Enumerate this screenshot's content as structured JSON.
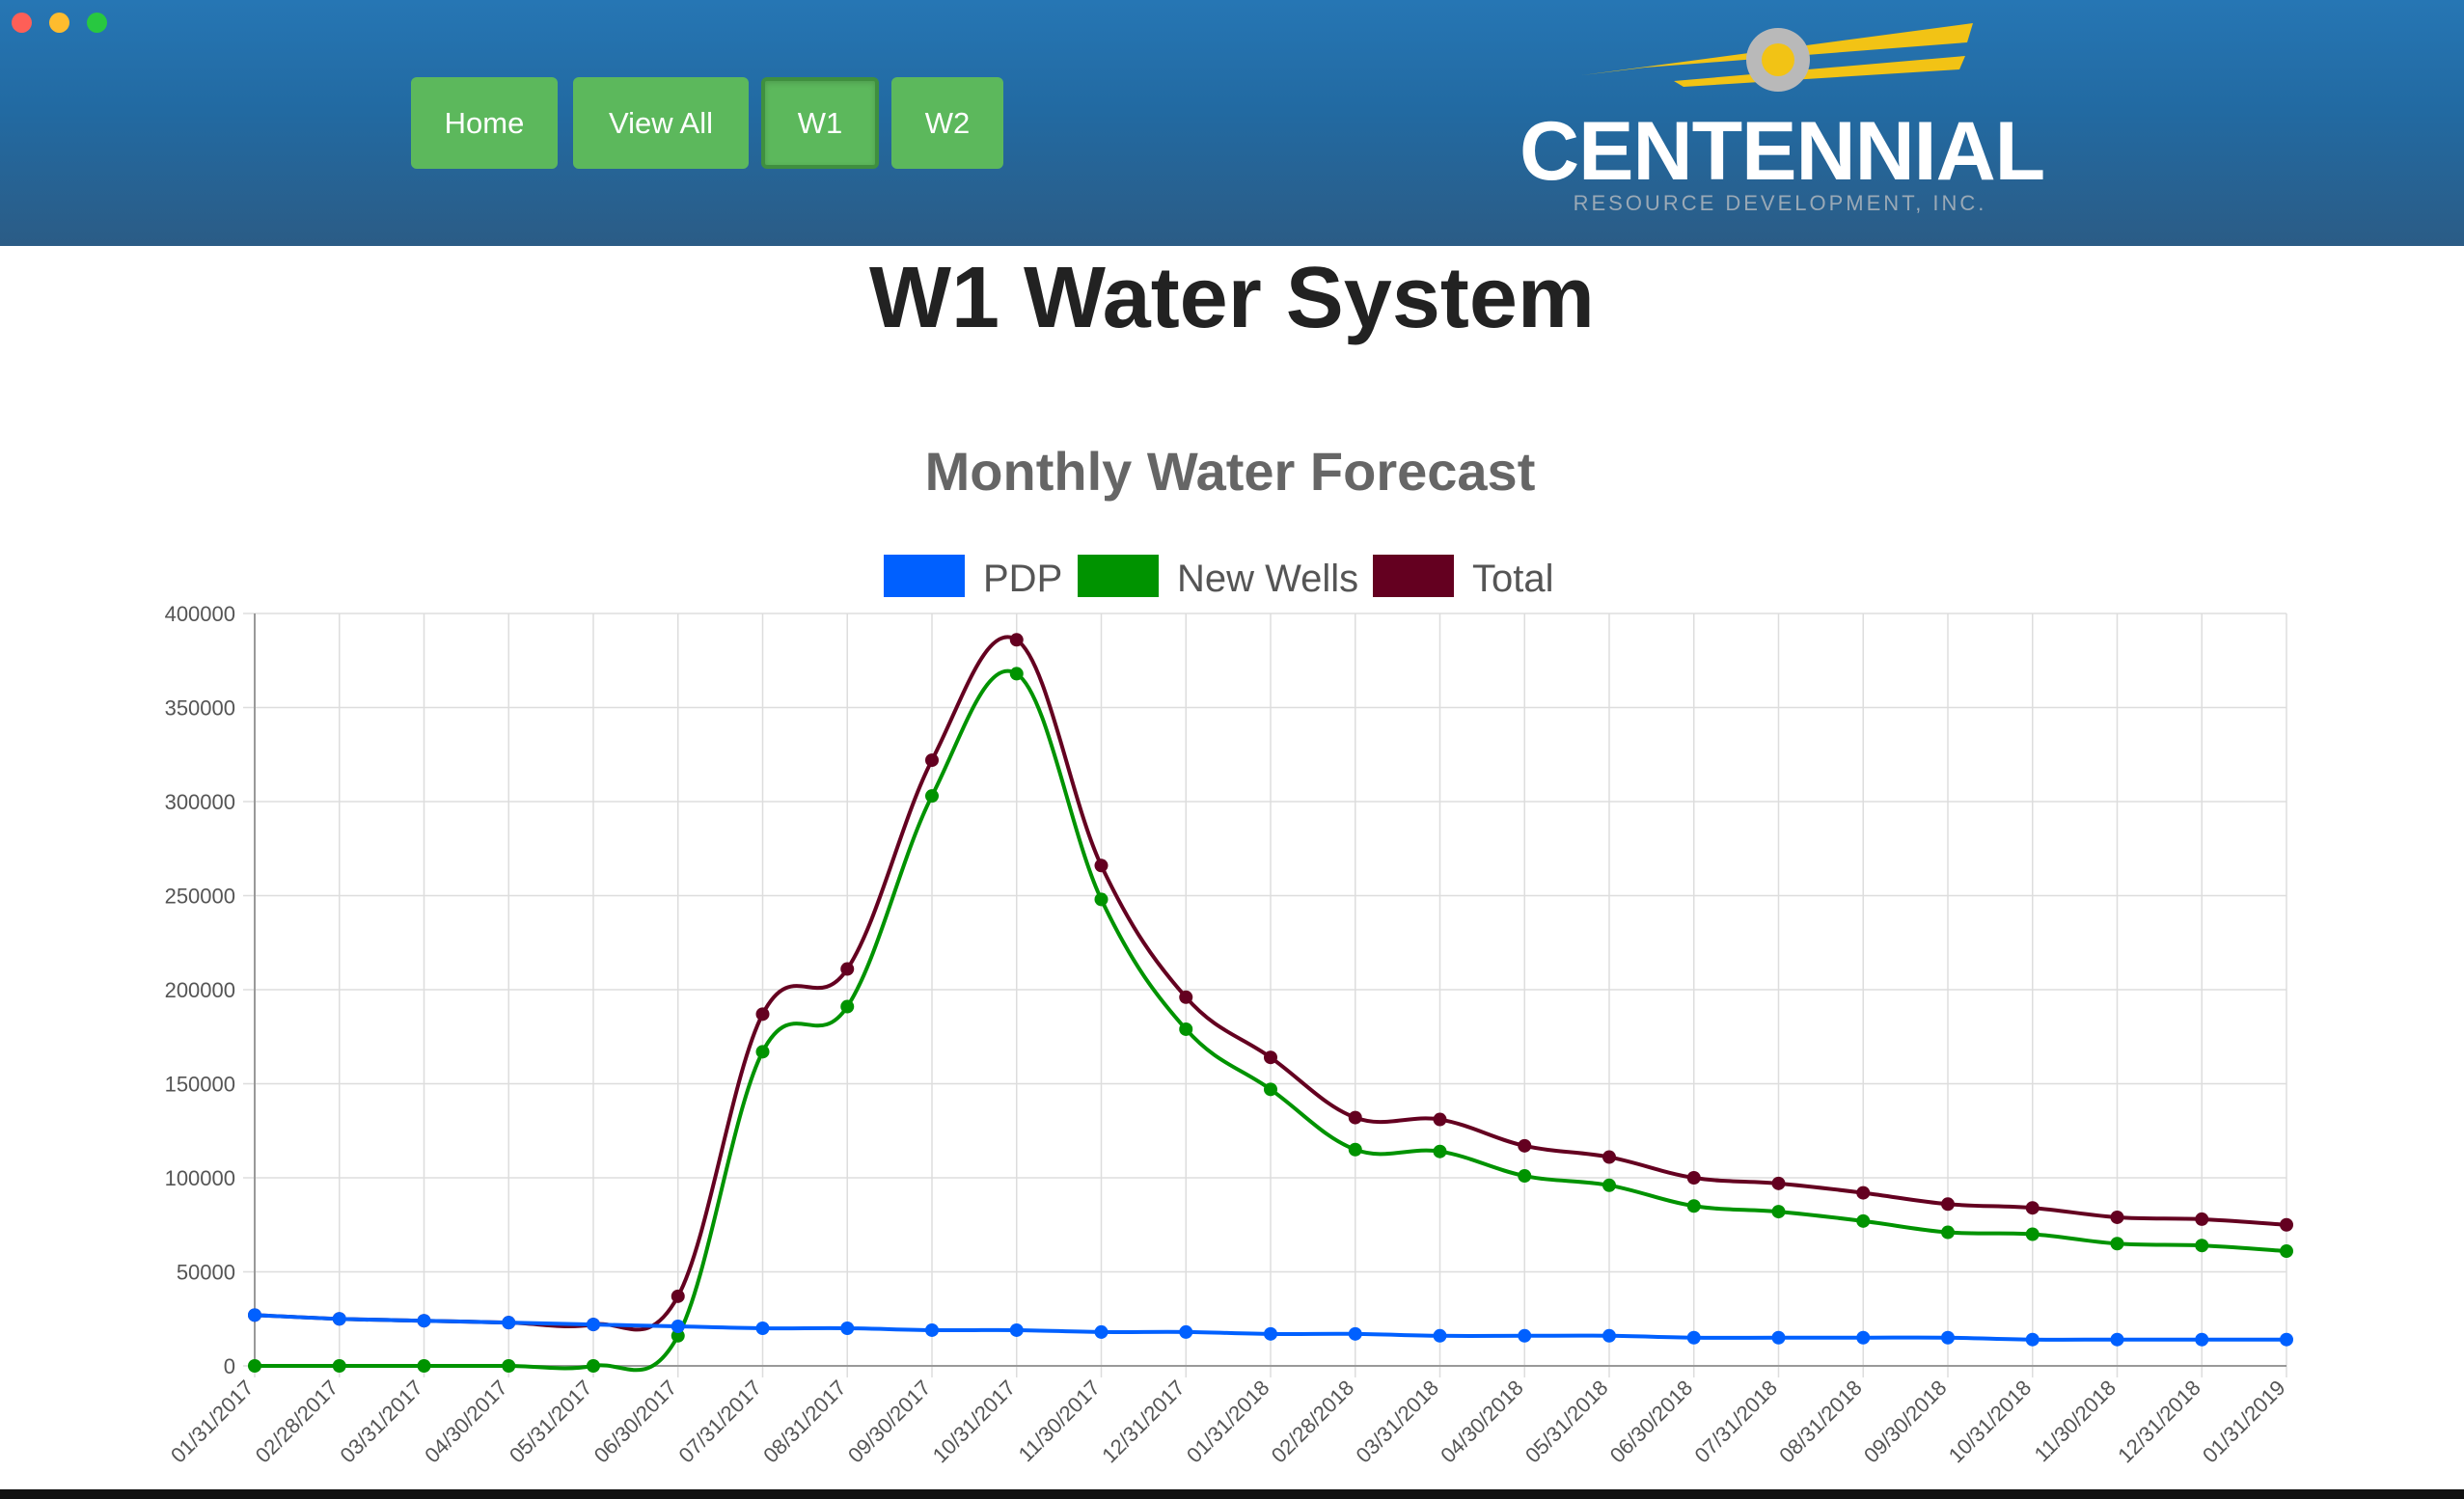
{
  "nav": {
    "buttons": [
      {
        "label": "Home"
      },
      {
        "label": "View All"
      },
      {
        "label": "W1"
      },
      {
        "label": "W2"
      }
    ],
    "active": "W1"
  },
  "logo": {
    "name": "CENTENNIAL",
    "tagline": "RESOURCE DEVELOPMENT, INC."
  },
  "page_title": "W1 Water System",
  "colors": {
    "header": "#236da6",
    "button": "#5cb85c",
    "pdp": "#0060ff",
    "new_wells": "#009300",
    "total": "#640020"
  },
  "chart_data": {
    "type": "line",
    "title": "Monthly Water Forecast",
    "xlabel": "",
    "ylabel": "",
    "ylim": [
      0,
      400000
    ],
    "yticks": [
      "0",
      "50000",
      "100000",
      "150000",
      "200000",
      "250000",
      "300000",
      "350000",
      "400000"
    ],
    "grid": true,
    "legend_position": "top",
    "categories": [
      "01/31/2017",
      "02/28/2017",
      "03/31/2017",
      "04/30/2017",
      "05/31/2017",
      "06/30/2017",
      "07/31/2017",
      "08/31/2017",
      "09/30/2017",
      "10/31/2017",
      "11/30/2017",
      "12/31/2017",
      "01/31/2018",
      "02/28/2018",
      "03/31/2018",
      "04/30/2018",
      "05/31/2018",
      "06/30/2018",
      "07/31/2018",
      "08/31/2018",
      "09/30/2018",
      "10/31/2018",
      "11/30/2018",
      "12/31/2018",
      "01/31/2019"
    ],
    "series": [
      {
        "name": "PDP",
        "color": "#0060ff",
        "values": [
          27000,
          25000,
          24000,
          23000,
          22000,
          21000,
          20000,
          20000,
          19000,
          19000,
          18000,
          18000,
          17000,
          17000,
          16000,
          16000,
          16000,
          15000,
          15000,
          15000,
          15000,
          14000,
          14000,
          14000,
          14000
        ]
      },
      {
        "name": "New Wells",
        "color": "#009300",
        "values": [
          0,
          0,
          0,
          0,
          0,
          16000,
          167000,
          191000,
          303000,
          368000,
          248000,
          179000,
          147000,
          115000,
          114000,
          101000,
          96000,
          85000,
          82000,
          77000,
          71000,
          70000,
          65000,
          64000,
          61000
        ]
      },
      {
        "name": "Total",
        "color": "#640020",
        "values": [
          27000,
          25000,
          24000,
          23000,
          22000,
          37000,
          187000,
          211000,
          322000,
          386000,
          266000,
          196000,
          164000,
          132000,
          131000,
          117000,
          111000,
          100000,
          97000,
          92000,
          86000,
          84000,
          79000,
          78000,
          75000
        ]
      }
    ]
  }
}
